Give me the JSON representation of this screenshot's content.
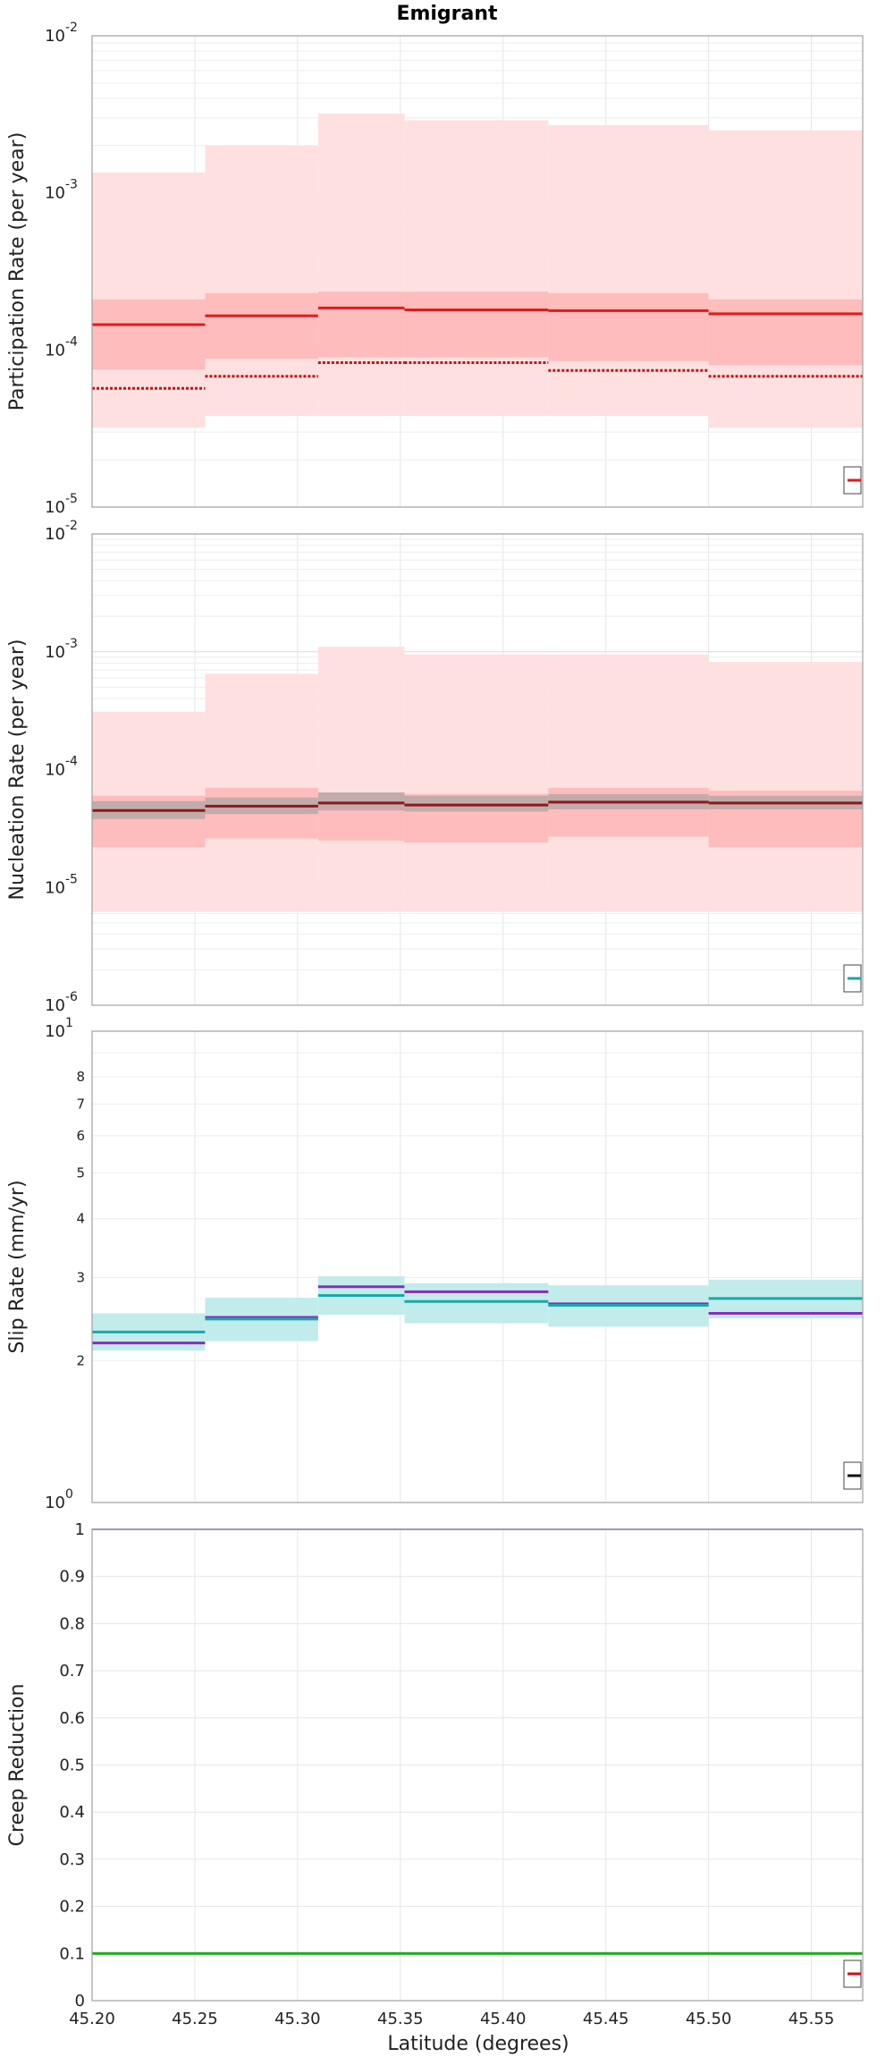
{
  "figure": {
    "title": "Emigrant",
    "xlabel": "Latitude (degrees)"
  },
  "chart_data": [
    {
      "type": "line",
      "name": "participation",
      "ylabel": "Participation Rate (per year)",
      "yscale": "log",
      "ylim": [
        1e-05,
        0.01
      ],
      "xlim": [
        45.2,
        45.575
      ],
      "x_ticks": [
        "45.20",
        "45.25",
        "45.30",
        "45.35",
        "45.40",
        "45.45",
        "45.50",
        "45.55"
      ],
      "y_ticks": [
        {
          "base": "10",
          "exp": "-5"
        },
        {
          "base": "10",
          "exp": "-4"
        },
        {
          "base": "10",
          "exp": "-3"
        },
        {
          "base": "10",
          "exp": "-2"
        }
      ],
      "bins": [
        {
          "x0": 45.2,
          "x1": 45.255,
          "mean": 0.000145,
          "median": 5.7e-05,
          "outer_low": 3.2e-05,
          "outer_high": 0.00135,
          "inner_low": 7.5e-05,
          "inner_high": 0.00021
        },
        {
          "x0": 45.255,
          "x1": 45.31,
          "mean": 0.000165,
          "median": 6.8e-05,
          "outer_low": 3.8e-05,
          "outer_high": 0.002,
          "inner_low": 8.8e-05,
          "inner_high": 0.00023
        },
        {
          "x0": 45.31,
          "x1": 45.352,
          "mean": 0.000185,
          "median": 8.3e-05,
          "outer_low": 3.8e-05,
          "outer_high": 0.0032,
          "inner_low": 9e-05,
          "inner_high": 0.000235
        },
        {
          "x0": 45.352,
          "x1": 45.422,
          "mean": 0.00018,
          "median": 8.3e-05,
          "outer_low": 3.8e-05,
          "outer_high": 0.0029,
          "inner_low": 9e-05,
          "inner_high": 0.000235
        },
        {
          "x0": 45.422,
          "x1": 45.5,
          "mean": 0.000178,
          "median": 7.4e-05,
          "outer_low": 3.8e-05,
          "outer_high": 0.0027,
          "inner_low": 8.5e-05,
          "inner_high": 0.00023
        },
        {
          "x0": 45.5,
          "x1": 45.575,
          "mean": 0.00017,
          "median": 6.8e-05,
          "outer_low": 3.2e-05,
          "outer_high": 0.0025,
          "inner_low": 8e-05,
          "inner_high": 0.00021
        }
      ],
      "colors": {
        "mean": "#e11a1a",
        "median": "#c41212",
        "outer": "#ffe0e0",
        "inner": "#ffbcbc"
      }
    },
    {
      "type": "line",
      "name": "nucleation",
      "ylabel": "Nucleation Rate (per year)",
      "yscale": "log",
      "ylim": [
        1e-06,
        0.01
      ],
      "xlim": [
        45.2,
        45.575
      ],
      "x_ticks": [
        "45.20",
        "45.25",
        "45.30",
        "45.35",
        "45.40",
        "45.45",
        "45.50",
        "45.55"
      ],
      "y_ticks": [
        {
          "base": "10",
          "exp": "-6"
        },
        {
          "base": "10",
          "exp": "-5"
        },
        {
          "base": "10",
          "exp": "-4"
        },
        {
          "base": "10",
          "exp": "-3"
        },
        {
          "base": "10",
          "exp": "-2"
        }
      ],
      "bins": [
        {
          "x0": 45.2,
          "x1": 45.255,
          "mean": 4.5e-05,
          "outer_low": 6.2e-06,
          "outer_high": 0.00031,
          "inner_low": 2.2e-05,
          "inner_high": 6e-05,
          "gray_low": 3.8e-05,
          "gray_high": 5.4e-05
        },
        {
          "x0": 45.255,
          "x1": 45.31,
          "mean": 4.9e-05,
          "outer_low": 6.2e-06,
          "outer_high": 0.00065,
          "inner_low": 2.6e-05,
          "inner_high": 7e-05,
          "gray_low": 4.2e-05,
          "gray_high": 5.8e-05
        },
        {
          "x0": 45.31,
          "x1": 45.352,
          "mean": 5.2e-05,
          "outer_low": 6.2e-06,
          "outer_high": 0.0011,
          "inner_low": 2.5e-05,
          "inner_high": 6.4e-05,
          "gray_low": 4.5e-05,
          "gray_high": 6.4e-05
        },
        {
          "x0": 45.352,
          "x1": 45.422,
          "mean": 5e-05,
          "outer_low": 6.2e-06,
          "outer_high": 0.00095,
          "inner_low": 2.4e-05,
          "inner_high": 6.2e-05,
          "gray_low": 4.4e-05,
          "gray_high": 6e-05
        },
        {
          "x0": 45.422,
          "x1": 45.5,
          "mean": 5.3e-05,
          "outer_low": 6.2e-06,
          "outer_high": 0.00095,
          "inner_low": 2.7e-05,
          "inner_high": 7e-05,
          "gray_low": 4.6e-05,
          "gray_high": 6.2e-05
        },
        {
          "x0": 45.5,
          "x1": 45.575,
          "mean": 5.2e-05,
          "outer_low": 6.2e-06,
          "outer_high": 0.00082,
          "inner_low": 2.2e-05,
          "inner_high": 6.6e-05,
          "gray_low": 4.6e-05,
          "gray_high": 6e-05
        }
      ],
      "colors": {
        "mean": "#8b1a1a",
        "outer": "#ffe0e0",
        "inner": "#ffbcbc",
        "gray": "#b8a8a8"
      }
    },
    {
      "type": "line",
      "name": "slip",
      "ylabel": "Slip Rate (mm/yr)",
      "yscale": "log",
      "ylim": [
        1,
        10
      ],
      "xlim": [
        45.2,
        45.575
      ],
      "x_ticks": [
        "45.20",
        "45.25",
        "45.30",
        "45.35",
        "45.40",
        "45.45",
        "45.50",
        "45.55"
      ],
      "y_ticks": [
        {
          "base": "10",
          "exp": "1"
        },
        {
          "base": "10",
          "exp": "0"
        }
      ],
      "y_minor_ticks": [
        "2",
        "3",
        "4",
        "5",
        "6",
        "7",
        "8"
      ],
      "bins": [
        {
          "x0": 45.2,
          "x1": 45.255,
          "target": 2.3,
          "solution": 2.18,
          "band_low": 2.1,
          "band_high": 2.52
        },
        {
          "x0": 45.255,
          "x1": 45.31,
          "target": 2.45,
          "solution": 2.47,
          "band_low": 2.2,
          "band_high": 2.72
        },
        {
          "x0": 45.31,
          "x1": 45.352,
          "target": 2.75,
          "solution": 2.87,
          "band_low": 2.5,
          "band_high": 3.02
        },
        {
          "x0": 45.352,
          "x1": 45.422,
          "target": 2.67,
          "solution": 2.8,
          "band_low": 2.4,
          "band_high": 2.92
        },
        {
          "x0": 45.422,
          "x1": 45.5,
          "target": 2.62,
          "solution": 2.64,
          "band_low": 2.36,
          "band_high": 2.89
        },
        {
          "x0": 45.5,
          "x1": 45.575,
          "target": 2.71,
          "solution": 2.52,
          "band_low": 2.46,
          "band_high": 2.97
        }
      ],
      "colors": {
        "target": "#1aa8a8",
        "solution": "#8a2bbf",
        "band": "#c2ecec"
      }
    },
    {
      "type": "line",
      "name": "creep",
      "ylabel": "Creep Reduction",
      "yscale": "linear",
      "ylim": [
        0,
        1
      ],
      "xlim": [
        45.2,
        45.575
      ],
      "x_ticks": [
        "45.20",
        "45.25",
        "45.30",
        "45.35",
        "45.40",
        "45.45",
        "45.50",
        "45.55"
      ],
      "y_ticks": [
        "0",
        "0.1",
        "0.2",
        "0.3",
        "0.4",
        "0.5",
        "0.6",
        "0.7",
        "0.8",
        "0.9",
        "1"
      ],
      "lines": [
        {
          "y": 1.0,
          "color": "#2c2c9a"
        },
        {
          "y": 0.1,
          "color": "#1aaa1a"
        }
      ]
    }
  ]
}
